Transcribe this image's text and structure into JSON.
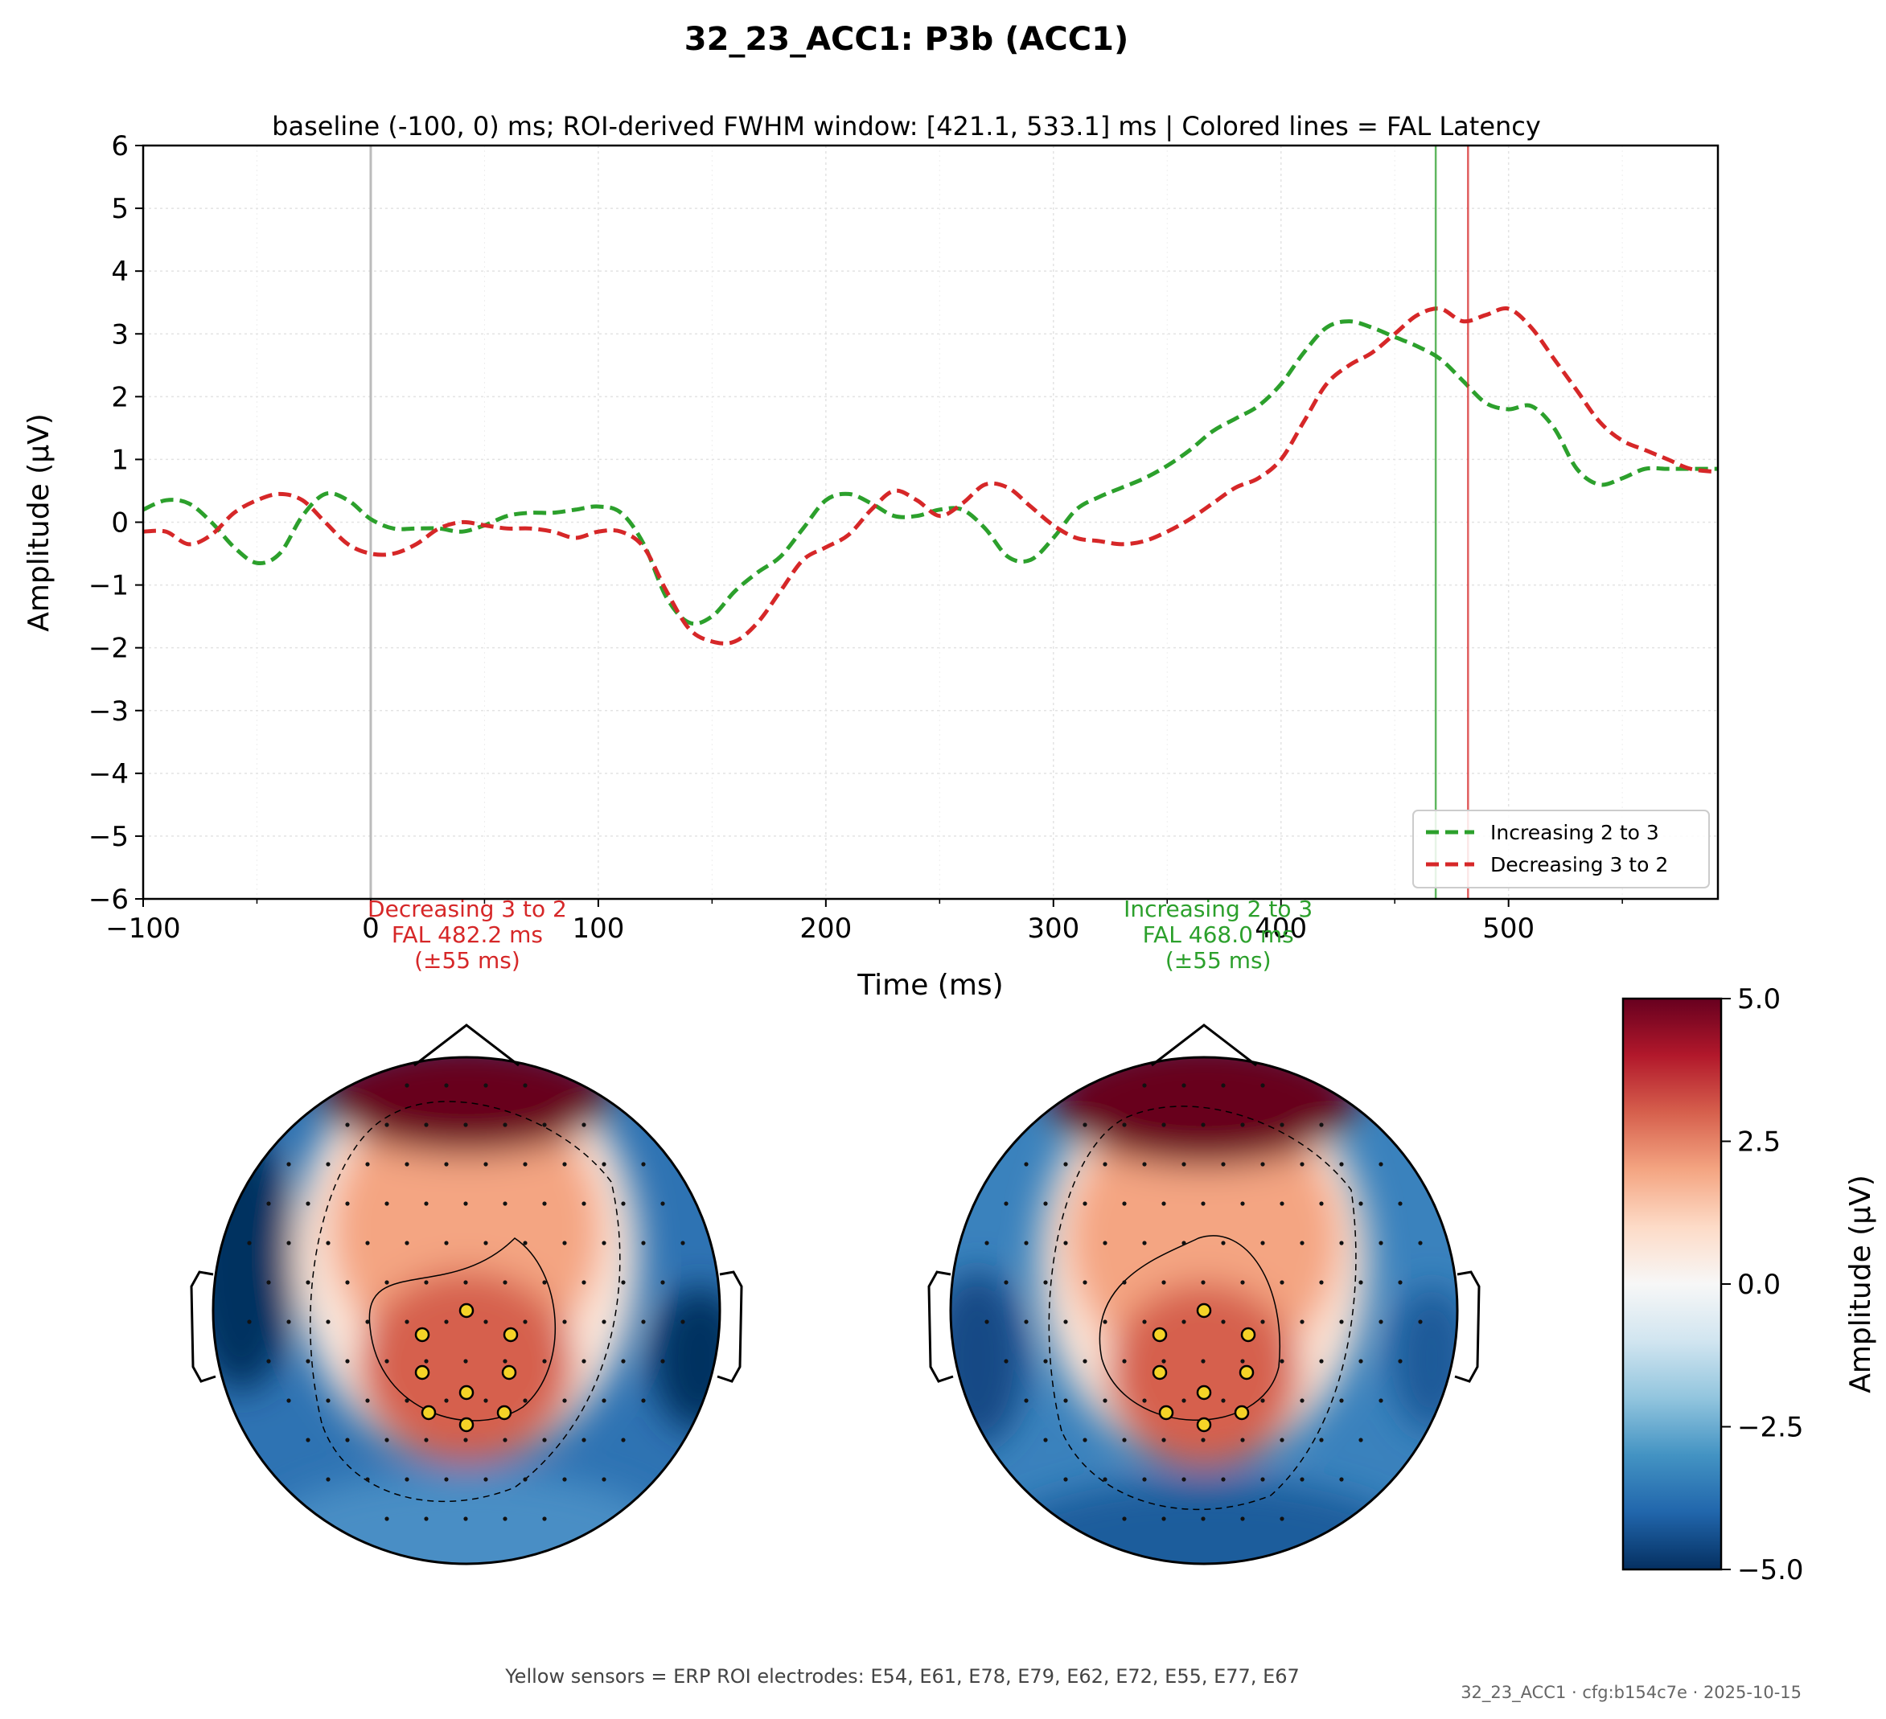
{
  "figure": {
    "title": "32_23_ACC1: P3b (ACC1)",
    "footer": "Yellow sensors = ERP ROI electrodes: E54, E61, E78, E79, E62, E72, E55, E77, E67",
    "stamp": "32_23_ACC1 · cfg:b154c7e · 2025-10-15"
  },
  "chart_data": [
    {
      "type": "line",
      "title": "baseline (-100, 0) ms; ROI-derived FWHM window: [421.1, 533.1] ms | Colored lines = FAL Latency",
      "xlabel": "Time (ms)",
      "ylabel": "Amplitude (µV)",
      "xlim": [
        -100,
        592
      ],
      "ylim": [
        -6,
        6
      ],
      "x_ticks": [
        -100,
        0,
        100,
        200,
        300,
        400,
        500
      ],
      "x_tick_labels": [
        "−100",
        "0",
        "100",
        "200",
        "300",
        "400",
        "500"
      ],
      "y_ticks": [
        -6,
        -5,
        -4,
        -3,
        -2,
        -1,
        0,
        1,
        2,
        3,
        4,
        5,
        6
      ],
      "y_tick_labels": [
        "−6",
        "−5",
        "−4",
        "−3",
        "−2",
        "−1",
        "0",
        "1",
        "2",
        "3",
        "4",
        "5",
        "6"
      ],
      "grid": true,
      "legend_position": "lower-right",
      "baseline_marker_x": 0,
      "series": [
        {
          "name": "Increasing 2 to 3",
          "color": "#2ca02c",
          "style": "dashed",
          "x": [
            -100,
            -90,
            -80,
            -70,
            -60,
            -50,
            -40,
            -30,
            -20,
            -10,
            0,
            10,
            20,
            30,
            40,
            50,
            60,
            70,
            80,
            90,
            100,
            110,
            120,
            130,
            140,
            150,
            160,
            170,
            180,
            190,
            200,
            210,
            220,
            230,
            240,
            250,
            260,
            270,
            280,
            290,
            300,
            310,
            320,
            330,
            340,
            350,
            360,
            370,
            380,
            390,
            400,
            410,
            420,
            430,
            440,
            450,
            460,
            470,
            480,
            490,
            500,
            510,
            520,
            530,
            540,
            550,
            560,
            570,
            580,
            592
          ],
          "y": [
            0.2,
            0.35,
            0.3,
            0.0,
            -0.4,
            -0.65,
            -0.5,
            0.1,
            0.45,
            0.35,
            0.05,
            -0.1,
            -0.1,
            -0.1,
            -0.15,
            -0.05,
            0.1,
            0.15,
            0.15,
            0.2,
            0.25,
            0.15,
            -0.35,
            -1.2,
            -1.6,
            -1.5,
            -1.1,
            -0.8,
            -0.55,
            -0.1,
            0.35,
            0.45,
            0.3,
            0.1,
            0.1,
            0.2,
            0.2,
            -0.1,
            -0.55,
            -0.6,
            -0.25,
            0.2,
            0.4,
            0.55,
            0.7,
            0.9,
            1.15,
            1.45,
            1.65,
            1.85,
            2.2,
            2.7,
            3.1,
            3.2,
            3.1,
            2.95,
            2.8,
            2.6,
            2.25,
            1.9,
            1.8,
            1.85,
            1.5,
            0.85,
            0.6,
            0.7,
            0.85,
            0.85,
            0.85,
            0.85
          ]
        },
        {
          "name": "Decreasing 3 to 2",
          "color": "#d62728",
          "style": "dashed",
          "x": [
            -100,
            -90,
            -80,
            -70,
            -60,
            -50,
            -40,
            -30,
            -20,
            -10,
            0,
            10,
            20,
            30,
            40,
            50,
            60,
            70,
            80,
            90,
            100,
            110,
            120,
            130,
            140,
            150,
            160,
            170,
            180,
            190,
            200,
            210,
            220,
            230,
            240,
            250,
            260,
            270,
            280,
            290,
            300,
            310,
            320,
            330,
            340,
            350,
            360,
            370,
            380,
            390,
            400,
            410,
            420,
            430,
            440,
            450,
            460,
            470,
            480,
            490,
            500,
            510,
            520,
            530,
            540,
            550,
            560,
            570,
            580,
            592
          ],
          "y": [
            -0.15,
            -0.15,
            -0.35,
            -0.2,
            0.15,
            0.35,
            0.45,
            0.35,
            0.0,
            -0.35,
            -0.5,
            -0.5,
            -0.35,
            -0.1,
            0.0,
            -0.05,
            -0.1,
            -0.1,
            -0.15,
            -0.25,
            -0.15,
            -0.15,
            -0.4,
            -1.1,
            -1.7,
            -1.9,
            -1.9,
            -1.6,
            -1.1,
            -0.6,
            -0.4,
            -0.2,
            0.2,
            0.5,
            0.35,
            0.1,
            0.3,
            0.6,
            0.55,
            0.25,
            -0.05,
            -0.25,
            -0.3,
            -0.35,
            -0.3,
            -0.15,
            0.05,
            0.3,
            0.55,
            0.7,
            1.0,
            1.6,
            2.2,
            2.5,
            2.7,
            3.0,
            3.3,
            3.4,
            3.2,
            3.3,
            3.4,
            3.1,
            2.6,
            2.1,
            1.6,
            1.3,
            1.15,
            1.0,
            0.85,
            0.8
          ]
        }
      ],
      "vertical_markers": [
        {
          "x": 482.2,
          "color": "#d62728",
          "label_lines": [
            "Decreasing 3 to 2",
            "FAL 482.2 ms",
            "(±55 ms)"
          ],
          "label_x": 0
        },
        {
          "x": 468.0,
          "color": "#2ca02c",
          "label_lines": [
            "Increasing 2 to 3",
            "FAL 468.0 ms",
            "(±55 ms)"
          ],
          "label_x": 330
        }
      ]
    },
    {
      "type": "heatmap",
      "subtype": "topomap",
      "maps": [
        {
          "condition": "Decreasing 3 to 2"
        },
        {
          "condition": "Increasing 2 to 3"
        }
      ],
      "colorbar": {
        "label": "Amplitude (µV)",
        "range": [
          -5,
          5
        ],
        "ticks": [
          5,
          2.5,
          0,
          -2.5,
          -5
        ],
        "tick_labels": [
          "5.0",
          "2.5",
          "0.0",
          "−2.5",
          "−5.0"
        ],
        "colormap": "RdBu_r",
        "colors": [
          "#053061",
          "#2166ac",
          "#4393c3",
          "#92c5de",
          "#d1e5f0",
          "#f7f7f7",
          "#fddbc7",
          "#f4a582",
          "#d6604d",
          "#b2182b",
          "#67001f"
        ]
      },
      "roi_marker_color": "#f5d327"
    }
  ]
}
